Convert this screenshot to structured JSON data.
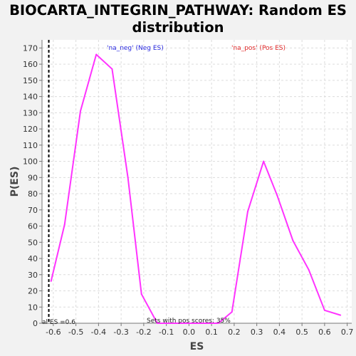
{
  "title": {
    "line1": "BIOCARTA_INTEGRIN_PATHWAY: Random ES",
    "line2": "distribution"
  },
  "colors": {
    "series": "#ff33ff",
    "neg_label": "#2a2ae0",
    "pos_label": "#e02a2a",
    "plot_bg": "#ffffff",
    "grid": "#dcdcdc",
    "observed_line": "#000000"
  },
  "chart_data": {
    "type": "line",
    "title": "BIOCARTA_INTEGRIN_PATHWAY: Random ES distribution",
    "xlabel": "ES",
    "ylabel": "P(ES)",
    "xlim": [
      -0.65,
      0.72
    ],
    "ylim": [
      0,
      175
    ],
    "x_ticks": [
      -0.6,
      -0.5,
      -0.4,
      -0.3,
      -0.2,
      -0.1,
      0.0,
      0.1,
      0.2,
      0.3,
      0.4,
      0.5,
      0.6,
      0.7
    ],
    "x_tick_labels": [
      "-0.6",
      "-0.5",
      "-0.4",
      "-0.3",
      "-0.2",
      "-0.1",
      "0.0",
      "0.1",
      "0.2",
      "0.3",
      "0.4",
      "0.5",
      "0.6",
      "0.7"
    ],
    "y_ticks": [
      0,
      10,
      20,
      30,
      40,
      50,
      60,
      70,
      80,
      90,
      100,
      110,
      120,
      130,
      140,
      150,
      160,
      170
    ],
    "grid": true,
    "series": [
      {
        "values": [
          {
            "x": -0.61,
            "y": 26
          },
          {
            "x": -0.55,
            "y": 61
          },
          {
            "x": -0.48,
            "y": 131
          },
          {
            "x": -0.41,
            "y": 166
          },
          {
            "x": -0.34,
            "y": 157
          },
          {
            "x": -0.27,
            "y": 90
          },
          {
            "x": -0.21,
            "y": 18
          },
          {
            "x": -0.14,
            "y": 0
          },
          {
            "x": -0.08,
            "y": 0
          },
          {
            "x": 0.13,
            "y": 0
          },
          {
            "x": 0.19,
            "y": 7
          },
          {
            "x": 0.26,
            "y": 69
          },
          {
            "x": 0.33,
            "y": 100
          },
          {
            "x": 0.39,
            "y": 79
          },
          {
            "x": 0.46,
            "y": 51
          },
          {
            "x": 0.53,
            "y": 33
          },
          {
            "x": 0.6,
            "y": 8
          },
          {
            "x": 0.67,
            "y": 5
          }
        ]
      }
    ],
    "observed_es": {
      "value": -0.62,
      "label": "al ES =0.6"
    },
    "annotations": {
      "neg_label": "'na_neg' (Neg ES)",
      "pos_label": "'na_pos' (Pos ES)",
      "pos_scores": "Sets with pos scores: 35%"
    }
  }
}
